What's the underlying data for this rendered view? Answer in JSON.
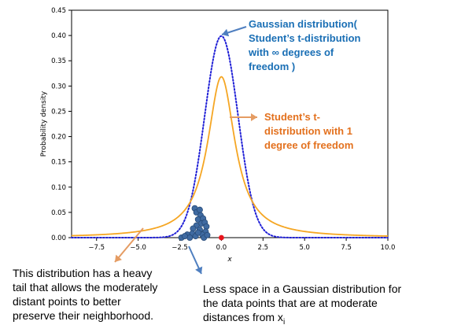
{
  "chart_data": {
    "type": "line",
    "xlabel": "x",
    "ylabel": "Probability density",
    "xlim": [
      -9.0,
      10.0
    ],
    "ylim": [
      0,
      0.45
    ],
    "x_ticks": [
      -7.5,
      -5.0,
      -2.5,
      0.0,
      2.5,
      5.0,
      7.5,
      10.0
    ],
    "x_tick_labels": [
      "−7.5",
      "−5.0",
      "−2.5",
      "0.0",
      "2.5",
      "5.0",
      "7.5",
      "10.0"
    ],
    "y_ticks": [
      0.0,
      0.05,
      0.1,
      0.15,
      0.2,
      0.25,
      0.3,
      0.35,
      0.4,
      0.45
    ],
    "y_tick_labels": [
      "0.00",
      "0.05",
      "0.10",
      "0.15",
      "0.20",
      "0.25",
      "0.30",
      "0.35",
      "0.40",
      "0.45"
    ],
    "grid": false,
    "series": [
      {
        "kind": "gaussian",
        "style": "dotted",
        "color": "#1f1fd6",
        "mean": 0.0,
        "sd": 1.0,
        "peak": 0.399
      },
      {
        "kind": "cauchy",
        "style": "solid",
        "color": "#f5a623",
        "location": 0.0,
        "scale": 1.0,
        "peak": 0.318
      }
    ],
    "scatter": {
      "color": "#3f6aa1",
      "edge": "#274a77",
      "points": [
        [
          -1.6,
          0.058
        ],
        [
          -1.5,
          0.05
        ],
        [
          -1.3,
          0.055
        ],
        [
          -1.25,
          0.044
        ],
        [
          -1.4,
          0.036
        ],
        [
          -1.1,
          0.038
        ],
        [
          -1.2,
          0.028
        ],
        [
          -1.0,
          0.03
        ],
        [
          -1.5,
          0.024
        ],
        [
          -0.9,
          0.022
        ],
        [
          -1.3,
          0.016
        ],
        [
          -1.7,
          0.018
        ],
        [
          -0.95,
          0.012
        ],
        [
          -1.15,
          0.006
        ],
        [
          -1.75,
          0.008
        ],
        [
          -2.05,
          0.006
        ],
        [
          -1.55,
          0.003
        ],
        [
          -1.05,
          0.0
        ],
        [
          -1.9,
          0.0
        ],
        [
          -2.4,
          0.0
        ],
        [
          -0.85,
          0.005
        ],
        [
          -1.4,
          0.01
        ],
        [
          -2.2,
          0.003
        ]
      ]
    },
    "center_point": {
      "x": 0.0,
      "y": 0.0,
      "color": "#e8141c"
    },
    "annotations": [
      {
        "id": "gaussian",
        "lines": [
          "Gaussian distribution(",
          "Student’s t-distribution",
          "with ∞ degrees of",
          "freedom )"
        ],
        "color": "#1a6fb5"
      },
      {
        "id": "student",
        "lines": [
          "Student’s t-",
          "distribution with 1",
          "degree of freedom"
        ],
        "color": "#e3711e"
      },
      {
        "id": "heavy-tail",
        "lines": [
          "This distribution has a heavy",
          "tail that allows the moderately",
          "distant points to better",
          "preserve their neighborhood."
        ],
        "color": "#000000"
      },
      {
        "id": "less-space",
        "lines": [
          "Less space in a Gaussian distribution for",
          "the data points that are at moderate",
          "distances from x",
          "i"
        ],
        "color": "#000000"
      }
    ]
  }
}
